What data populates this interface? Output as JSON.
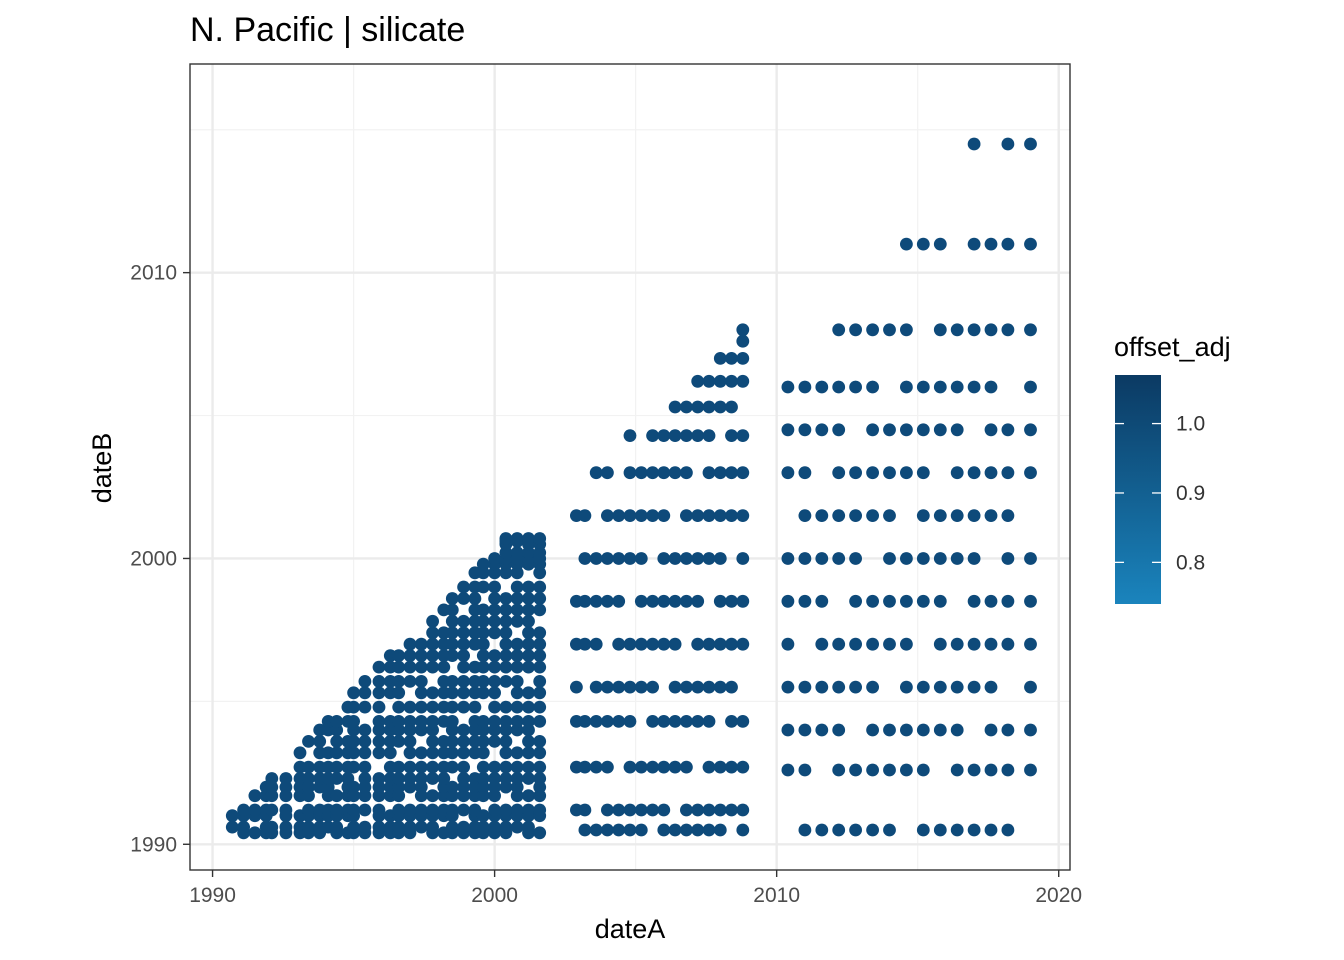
{
  "chart_data": {
    "type": "scatter",
    "title": "N. Pacific | silicate",
    "xlabel": "dateA",
    "ylabel": "dateB",
    "xlim": [
      1989.2,
      2020.4
    ],
    "ylim": [
      1989.1,
      2017.3
    ],
    "x_ticks": [
      1990,
      2000,
      2010,
      2020
    ],
    "y_ticks": [
      1990,
      2000,
      2010
    ],
    "x_tick_labels": [
      "1990",
      "2000",
      "2010",
      "2020"
    ],
    "y_tick_labels": [
      "1990",
      "2000",
      "2010"
    ],
    "grid": true,
    "point_color": "#0e4a7a",
    "legend": {
      "title": "offset_adj",
      "position": "right",
      "min": 0.74,
      "max": 1.07,
      "ticks": [
        1.0,
        0.9,
        0.8
      ],
      "tick_labels": [
        "1.0",
        "0.9",
        "0.8"
      ],
      "colors": [
        "#0b3a63",
        "#1a84bd"
      ]
    },
    "groups": [
      {
        "region": "1990-2002 triangle",
        "dateA": [
          1990.7,
          1991.1,
          1991.5,
          1991.9,
          1992.1,
          1992.6,
          1993.1,
          1993.4,
          1993.8,
          1994.1,
          1994.4,
          1994.8,
          1995.0,
          1995.4,
          1995.9,
          1996.3,
          1996.6,
          1997.0,
          1997.4,
          1997.8,
          1998.2,
          1998.5,
          1998.9,
          1999.3,
          1999.6,
          2000.0,
          2000.4,
          2000.8,
          2001.2,
          2001.6
        ],
        "dateB": [
          1990.4,
          1990.6,
          1991.0,
          1991.2,
          1991.7,
          1992.0,
          1992.3,
          1992.7,
          1993.2,
          1993.6,
          1994.0,
          1994.3,
          1994.8,
          1995.3,
          1995.7,
          1996.2,
          1996.6,
          1997.0,
          1997.4,
          1997.8,
          1998.2,
          1998.6,
          1999.0,
          1999.5,
          1999.8,
          2000.0,
          2000.2,
          2000.5,
          2000.6,
          2000.7
        ]
      },
      {
        "region": "2003-2009 block",
        "dateA": [
          2002.9,
          2003.2,
          2003.6,
          2004.0,
          2004.4,
          2004.8,
          2005.2,
          2005.6,
          2006.0,
          2006.4,
          2006.8,
          2007.2,
          2007.6,
          2008.0,
          2008.4,
          2008.8
        ],
        "dateB": [
          1990.5,
          1991.2,
          1992.7,
          1994.3,
          1995.5,
          1997.0,
          1998.5,
          2000.0,
          2001.5,
          2003.0,
          2004.3,
          2005.3,
          2006.2,
          2007.0,
          2007.6,
          2008.0
        ]
      },
      {
        "region": "2010-2019 block",
        "dateA": [
          2010.4,
          2011.0,
          2011.6,
          2012.2,
          2012.8,
          2013.4,
          2014.0,
          2014.6,
          2015.2,
          2015.8,
          2016.4,
          2017.0,
          2017.6,
          2018.2,
          2019.0
        ],
        "dateB": [
          1990.5,
          1992.6,
          1994.0,
          1995.5,
          1997.0,
          1998.5,
          2000.0,
          2001.5,
          2003.0,
          2004.5,
          2006.0,
          2008.0,
          2011.0,
          2014.5,
          2016.6
        ]
      }
    ]
  }
}
